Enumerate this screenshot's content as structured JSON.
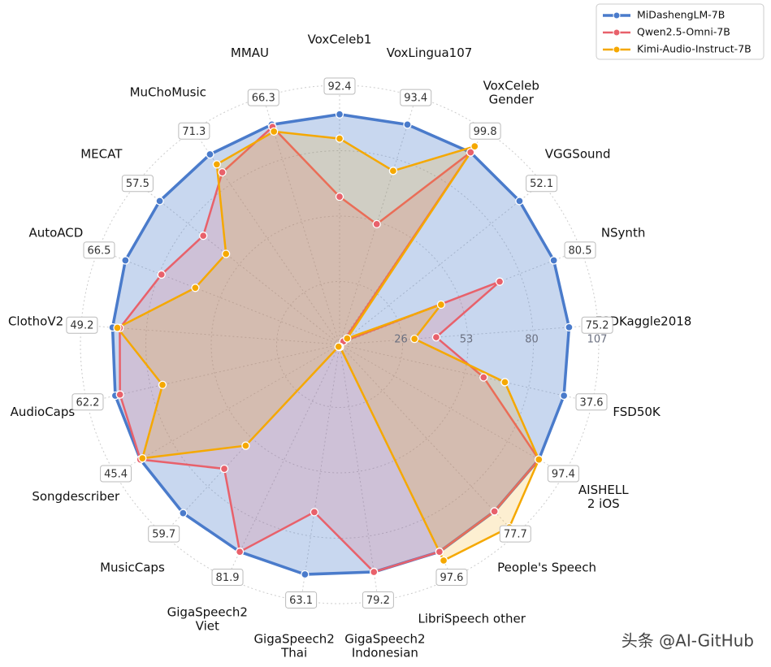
{
  "chart_data": {
    "type": "radar",
    "categories": [
      "VoxCeleb1",
      "VoxLingua107",
      "VoxCeleb\nGender",
      "VGGSound",
      "NSynth",
      "FSDKaggle2018",
      "FSD50K",
      "AISHELL\n2 iOS",
      "People's Speech",
      "LibriSpeech other",
      "GigaSpeech2\nIndonesian",
      "GigaSpeech2\nThai",
      "GigaSpeech2\nViet",
      "MusicCaps",
      "Songdescriber",
      "AudioCaps",
      "ClothoV2",
      "AutoACD",
      "MECAT",
      "MuChoMusic",
      "MMAU"
    ],
    "axis_values": [
      92.4,
      93.4,
      99.8,
      52.1,
      80.5,
      75.2,
      37.6,
      97.4,
      77.7,
      97.6,
      79.2,
      63.1,
      81.9,
      59.7,
      45.4,
      62.2,
      49.2,
      66.5,
      57.5,
      71.3,
      66.3
    ],
    "series": [
      {
        "name": "MiDashengLM-7B",
        "color": "#4a7bcb",
        "values": [
          95,
          95,
          96,
          95,
          95,
          95,
          95,
          95,
          94,
          95,
          95,
          96,
          95,
          95,
          95,
          95,
          94,
          95,
          95,
          95,
          95
        ]
      },
      {
        "name": "Qwen2.5-Omni-7B",
        "color": "#e8616b",
        "values": [
          61,
          52,
          96,
          2,
          71,
          40,
          61,
          95,
          94,
          95,
          95,
          70,
          95,
          70,
          95,
          93,
          91,
          79,
          72,
          86,
          94
        ]
      },
      {
        "name": "Kimi-Audio-Instruct-7B",
        "color": "#f5a800",
        "values": [
          85,
          75,
          99,
          4,
          45,
          31,
          70,
          95,
          103,
          99,
          1,
          1,
          1,
          57,
          94,
          75,
          92,
          64,
          60,
          90,
          92
        ]
      }
    ],
    "ylim": [
      0,
      107
    ],
    "yticks": [
      26,
      53,
      80,
      107
    ],
    "grid": true,
    "legend": "upper right"
  },
  "watermark": "头条 @AI-GitHub"
}
